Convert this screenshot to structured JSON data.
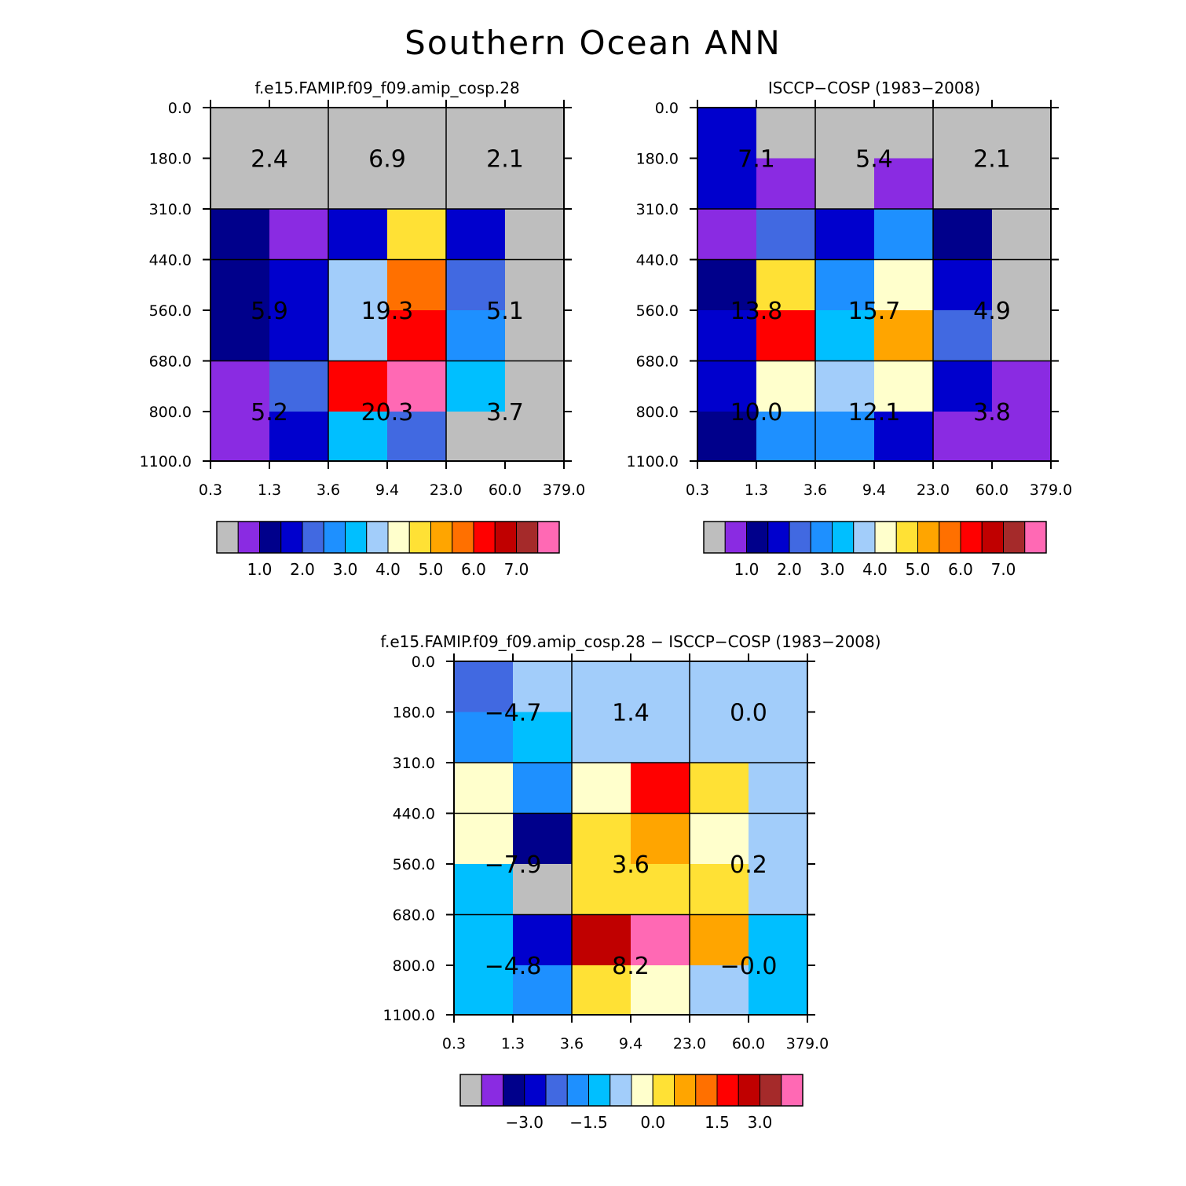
{
  "title": "Southern Ocean ANN",
  "colors": [
    "#bebebe",
    "#8a2be2",
    "#00008b",
    "#0000cd",
    "#4169e1",
    "#1e90ff",
    "#00bfff",
    "#a2cdfa",
    "#ffffcc",
    "#ffe135",
    "#ffa500",
    "#ff7000",
    "#ff0000",
    "#c00000",
    "#a52a2a",
    "#ff69b4"
  ],
  "chart_data": [
    {
      "type": "heatmap",
      "title": "f.e15.FAMIP.f09_f09.amip_cosp.28",
      "x_ticks": [
        "0.3",
        "1.3",
        "3.6",
        "9.4",
        "23.0",
        "60.0",
        "379.0"
      ],
      "y_ticks": [
        "0.0",
        "180.0",
        "310.0",
        "440.0",
        "560.0",
        "680.0",
        "800.0",
        "1100.0"
      ],
      "cells": [
        [
          0,
          0,
          0,
          0,
          0,
          0
        ],
        [
          0,
          0,
          0,
          0,
          0,
          0
        ],
        [
          2,
          1,
          3,
          9,
          3,
          0
        ],
        [
          2,
          3,
          7,
          11,
          4,
          0
        ],
        [
          2,
          3,
          7,
          12,
          5,
          0
        ],
        [
          1,
          4,
          12,
          15,
          6,
          0
        ],
        [
          1,
          3,
          6,
          4,
          0,
          0
        ]
      ],
      "sums": [
        [
          "2.4",
          "6.9",
          "2.1"
        ],
        [
          "5.9",
          "19.3",
          "5.1"
        ],
        [
          "5.2",
          "20.3",
          "3.7"
        ]
      ],
      "colorbar_labels": [
        "1.0",
        "2.0",
        "3.0",
        "4.0",
        "5.0",
        "6.0",
        "7.0"
      ]
    },
    {
      "type": "heatmap",
      "title": "ISCCP-COSP (1983-2008)",
      "x_ticks": [
        "0.3",
        "1.3",
        "3.6",
        "9.4",
        "23.0",
        "60.0",
        "379.0"
      ],
      "y_ticks": [
        "0.0",
        "180.0",
        "310.0",
        "440.0",
        "560.0",
        "680.0",
        "800.0",
        "1100.0"
      ],
      "cells": [
        [
          3,
          0,
          0,
          0,
          0,
          0
        ],
        [
          3,
          1,
          0,
          1,
          0,
          0
        ],
        [
          1,
          4,
          3,
          5,
          2,
          0
        ],
        [
          2,
          9,
          5,
          8,
          3,
          0
        ],
        [
          3,
          12,
          6,
          10,
          4,
          0
        ],
        [
          3,
          8,
          7,
          8,
          3,
          1
        ],
        [
          2,
          5,
          5,
          3,
          1,
          1
        ]
      ],
      "sums": [
        [
          "7.1",
          "5.4",
          "2.1"
        ],
        [
          "13.8",
          "15.7",
          "4.9"
        ],
        [
          "10.0",
          "12.1",
          "3.8"
        ]
      ],
      "colorbar_labels": [
        "1.0",
        "2.0",
        "3.0",
        "4.0",
        "5.0",
        "6.0",
        "7.0"
      ]
    },
    {
      "type": "heatmap",
      "title": "f.e15.FAMIP.f09_f09.amip_cosp.28 - ISCCP-COSP (1983-2008)",
      "x_ticks": [
        "0.3",
        "1.3",
        "3.6",
        "9.4",
        "23.0",
        "60.0",
        "379.0"
      ],
      "y_ticks": [
        "0.0",
        "180.0",
        "310.0",
        "440.0",
        "560.0",
        "680.0",
        "800.0",
        "1100.0"
      ],
      "cells": [
        [
          4,
          7,
          7,
          7,
          7,
          7
        ],
        [
          5,
          6,
          7,
          7,
          7,
          7
        ],
        [
          8,
          5,
          8,
          12,
          9,
          7
        ],
        [
          8,
          2,
          9,
          10,
          8,
          7
        ],
        [
          6,
          0,
          9,
          9,
          9,
          7
        ],
        [
          6,
          3,
          13,
          15,
          10,
          6
        ],
        [
          6,
          5,
          9,
          8,
          7,
          6
        ]
      ],
      "sums": [
        [
          "-4.7",
          "1.4",
          "0.0"
        ],
        [
          "-7.9",
          "3.6",
          "0.2"
        ],
        [
          "-4.8",
          "8.2",
          "-0.0"
        ]
      ],
      "colorbar_labels": [
        "-3.0",
        "-1.5",
        "0.0",
        "1.5",
        "3.0"
      ]
    }
  ]
}
